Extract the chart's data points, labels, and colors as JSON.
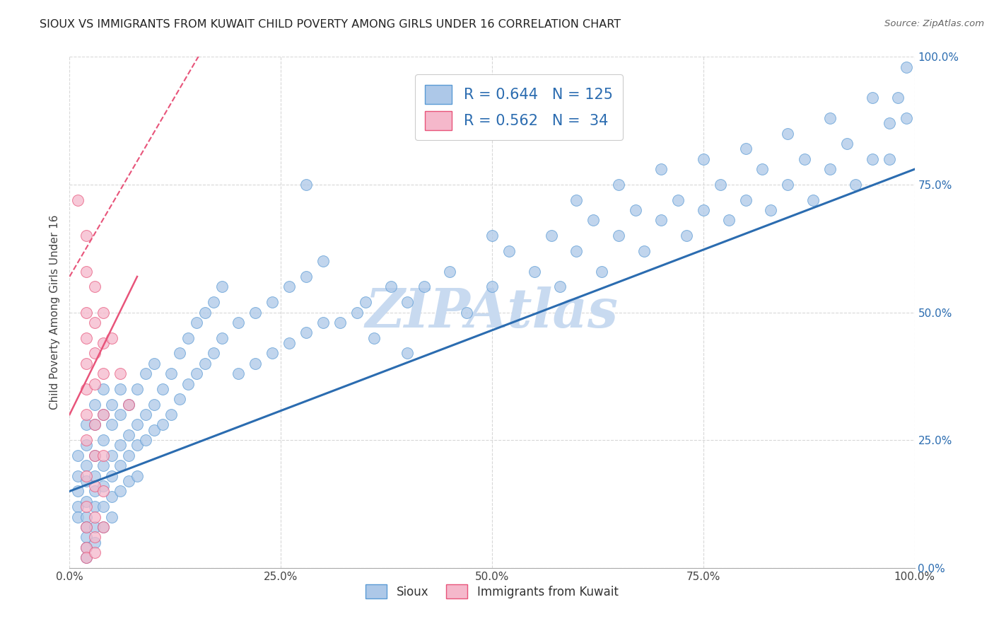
{
  "title": "SIOUX VS IMMIGRANTS FROM KUWAIT CHILD POVERTY AMONG GIRLS UNDER 16 CORRELATION CHART",
  "source": "Source: ZipAtlas.com",
  "ylabel": "Child Poverty Among Girls Under 16",
  "xlim": [
    0,
    1
  ],
  "ylim": [
    0,
    1
  ],
  "xtick_vals": [
    0.0,
    0.25,
    0.5,
    0.75,
    1.0
  ],
  "xtick_labels": [
    "0.0%",
    "25.0%",
    "50.0%",
    "75.0%",
    "100.0%"
  ],
  "ytick_vals": [
    0.0,
    0.25,
    0.5,
    0.75,
    1.0
  ],
  "ytick_labels": [
    "0.0%",
    "25.0%",
    "50.0%",
    "75.0%",
    "100.0%"
  ],
  "sioux_R": 0.644,
  "sioux_N": 125,
  "kuwait_R": 0.562,
  "kuwait_N": 34,
  "sioux_color": "#adc8e8",
  "kuwait_color": "#f5b8cb",
  "sioux_edge_color": "#5b9bd5",
  "kuwait_edge_color": "#e8547a",
  "sioux_line_color": "#2b6cb0",
  "kuwait_line_color": "#e8547a",
  "watermark_color": "#c8daf0",
  "background_color": "#ffffff",
  "grid_color": "#d8d8d8",
  "sioux_line": [
    [
      0.0,
      0.15
    ],
    [
      1.0,
      0.78
    ]
  ],
  "kuwait_line_solid": [
    [
      0.0,
      0.3
    ],
    [
      0.08,
      0.57
    ]
  ],
  "kuwait_line_dash": [
    [
      0.0,
      0.57
    ],
    [
      0.17,
      1.05
    ]
  ],
  "sioux_scatter": [
    [
      0.01,
      0.22
    ],
    [
      0.01,
      0.18
    ],
    [
      0.01,
      0.15
    ],
    [
      0.01,
      0.12
    ],
    [
      0.01,
      0.1
    ],
    [
      0.02,
      0.2
    ],
    [
      0.02,
      0.17
    ],
    [
      0.02,
      0.13
    ],
    [
      0.02,
      0.1
    ],
    [
      0.02,
      0.08
    ],
    [
      0.02,
      0.06
    ],
    [
      0.02,
      0.04
    ],
    [
      0.02,
      0.02
    ],
    [
      0.02,
      0.24
    ],
    [
      0.02,
      0.28
    ],
    [
      0.03,
      0.22
    ],
    [
      0.03,
      0.18
    ],
    [
      0.03,
      0.15
    ],
    [
      0.03,
      0.12
    ],
    [
      0.03,
      0.08
    ],
    [
      0.03,
      0.05
    ],
    [
      0.03,
      0.28
    ],
    [
      0.03,
      0.32
    ],
    [
      0.04,
      0.25
    ],
    [
      0.04,
      0.2
    ],
    [
      0.04,
      0.16
    ],
    [
      0.04,
      0.12
    ],
    [
      0.04,
      0.08
    ],
    [
      0.04,
      0.3
    ],
    [
      0.04,
      0.35
    ],
    [
      0.05,
      0.28
    ],
    [
      0.05,
      0.22
    ],
    [
      0.05,
      0.18
    ],
    [
      0.05,
      0.14
    ],
    [
      0.05,
      0.1
    ],
    [
      0.05,
      0.32
    ],
    [
      0.06,
      0.3
    ],
    [
      0.06,
      0.24
    ],
    [
      0.06,
      0.2
    ],
    [
      0.06,
      0.15
    ],
    [
      0.06,
      0.35
    ],
    [
      0.07,
      0.32
    ],
    [
      0.07,
      0.26
    ],
    [
      0.07,
      0.22
    ],
    [
      0.07,
      0.17
    ],
    [
      0.08,
      0.35
    ],
    [
      0.08,
      0.28
    ],
    [
      0.08,
      0.24
    ],
    [
      0.08,
      0.18
    ],
    [
      0.09,
      0.38
    ],
    [
      0.09,
      0.3
    ],
    [
      0.09,
      0.25
    ],
    [
      0.1,
      0.4
    ],
    [
      0.1,
      0.32
    ],
    [
      0.1,
      0.27
    ],
    [
      0.11,
      0.35
    ],
    [
      0.11,
      0.28
    ],
    [
      0.12,
      0.38
    ],
    [
      0.12,
      0.3
    ],
    [
      0.13,
      0.42
    ],
    [
      0.13,
      0.33
    ],
    [
      0.14,
      0.45
    ],
    [
      0.14,
      0.36
    ],
    [
      0.15,
      0.48
    ],
    [
      0.15,
      0.38
    ],
    [
      0.16,
      0.5
    ],
    [
      0.16,
      0.4
    ],
    [
      0.17,
      0.52
    ],
    [
      0.17,
      0.42
    ],
    [
      0.18,
      0.45
    ],
    [
      0.18,
      0.55
    ],
    [
      0.2,
      0.48
    ],
    [
      0.2,
      0.38
    ],
    [
      0.22,
      0.5
    ],
    [
      0.22,
      0.4
    ],
    [
      0.24,
      0.52
    ],
    [
      0.24,
      0.42
    ],
    [
      0.26,
      0.55
    ],
    [
      0.26,
      0.44
    ],
    [
      0.28,
      0.57
    ],
    [
      0.28,
      0.46
    ],
    [
      0.3,
      0.6
    ],
    [
      0.3,
      0.48
    ],
    [
      0.32,
      0.48
    ],
    [
      0.34,
      0.5
    ],
    [
      0.35,
      0.52
    ],
    [
      0.36,
      0.45
    ],
    [
      0.38,
      0.55
    ],
    [
      0.4,
      0.52
    ],
    [
      0.4,
      0.42
    ],
    [
      0.42,
      0.55
    ],
    [
      0.45,
      0.58
    ],
    [
      0.47,
      0.5
    ],
    [
      0.5,
      0.55
    ],
    [
      0.5,
      0.65
    ],
    [
      0.52,
      0.62
    ],
    [
      0.55,
      0.58
    ],
    [
      0.57,
      0.65
    ],
    [
      0.58,
      0.55
    ],
    [
      0.6,
      0.62
    ],
    [
      0.6,
      0.72
    ],
    [
      0.62,
      0.68
    ],
    [
      0.63,
      0.58
    ],
    [
      0.65,
      0.65
    ],
    [
      0.65,
      0.75
    ],
    [
      0.67,
      0.7
    ],
    [
      0.68,
      0.62
    ],
    [
      0.7,
      0.68
    ],
    [
      0.7,
      0.78
    ],
    [
      0.72,
      0.72
    ],
    [
      0.73,
      0.65
    ],
    [
      0.75,
      0.7
    ],
    [
      0.75,
      0.8
    ],
    [
      0.77,
      0.75
    ],
    [
      0.78,
      0.68
    ],
    [
      0.8,
      0.72
    ],
    [
      0.8,
      0.82
    ],
    [
      0.82,
      0.78
    ],
    [
      0.83,
      0.7
    ],
    [
      0.85,
      0.75
    ],
    [
      0.85,
      0.85
    ],
    [
      0.87,
      0.8
    ],
    [
      0.88,
      0.72
    ],
    [
      0.9,
      0.78
    ],
    [
      0.9,
      0.88
    ],
    [
      0.92,
      0.83
    ],
    [
      0.93,
      0.75
    ],
    [
      0.95,
      0.8
    ],
    [
      0.95,
      0.92
    ],
    [
      0.97,
      0.87
    ],
    [
      0.97,
      0.8
    ],
    [
      0.98,
      0.92
    ],
    [
      0.99,
      0.98
    ],
    [
      0.99,
      0.88
    ],
    [
      0.28,
      0.75
    ]
  ],
  "kuwait_scatter": [
    [
      0.01,
      0.72
    ],
    [
      0.02,
      0.65
    ],
    [
      0.02,
      0.58
    ],
    [
      0.02,
      0.5
    ],
    [
      0.02,
      0.45
    ],
    [
      0.02,
      0.4
    ],
    [
      0.02,
      0.35
    ],
    [
      0.02,
      0.3
    ],
    [
      0.02,
      0.25
    ],
    [
      0.02,
      0.18
    ],
    [
      0.02,
      0.12
    ],
    [
      0.02,
      0.08
    ],
    [
      0.02,
      0.04
    ],
    [
      0.02,
      0.02
    ],
    [
      0.03,
      0.55
    ],
    [
      0.03,
      0.48
    ],
    [
      0.03,
      0.42
    ],
    [
      0.03,
      0.36
    ],
    [
      0.03,
      0.28
    ],
    [
      0.03,
      0.22
    ],
    [
      0.03,
      0.16
    ],
    [
      0.03,
      0.1
    ],
    [
      0.03,
      0.06
    ],
    [
      0.03,
      0.03
    ],
    [
      0.04,
      0.5
    ],
    [
      0.04,
      0.44
    ],
    [
      0.04,
      0.38
    ],
    [
      0.04,
      0.3
    ],
    [
      0.04,
      0.22
    ],
    [
      0.04,
      0.15
    ],
    [
      0.04,
      0.08
    ],
    [
      0.05,
      0.45
    ],
    [
      0.06,
      0.38
    ],
    [
      0.07,
      0.32
    ]
  ]
}
